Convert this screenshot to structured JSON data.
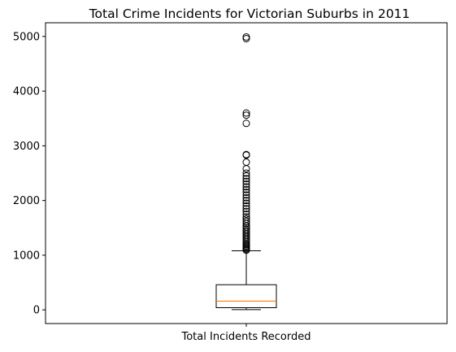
{
  "chart_data": {
    "type": "boxplot",
    "title": "Total Crime Incidents for Victorian Suburbs in 2011",
    "xlabel": "",
    "ylabel": "",
    "categories": [
      "Total Incidents Recorded"
    ],
    "ylim": [
      -250,
      5250
    ],
    "yticks": [
      0,
      1000,
      2000,
      3000,
      4000,
      5000
    ],
    "yticks_labels": [
      "0",
      "1000",
      "2000",
      "3000",
      "4000",
      "5000"
    ],
    "grid": false,
    "box": {
      "whisker_low": 5,
      "q1": 40,
      "median": 160,
      "q3": 460,
      "whisker_high": 1080
    },
    "outliers": [
      1090,
      1110,
      1130,
      1150,
      1170,
      1190,
      1210,
      1240,
      1270,
      1300,
      1330,
      1360,
      1390,
      1420,
      1450,
      1480,
      1510,
      1540,
      1580,
      1620,
      1660,
      1700,
      1750,
      1800,
      1850,
      1900,
      1950,
      2000,
      2050,
      2100,
      2150,
      2200,
      2250,
      2300,
      2350,
      2400,
      2450,
      2500,
      2580,
      2700,
      2830,
      2840,
      3410,
      3560,
      3600,
      4960,
      4990
    ],
    "colors": {
      "box": "#000000",
      "median": "#ff7f0e",
      "outlier": "#000000"
    }
  }
}
